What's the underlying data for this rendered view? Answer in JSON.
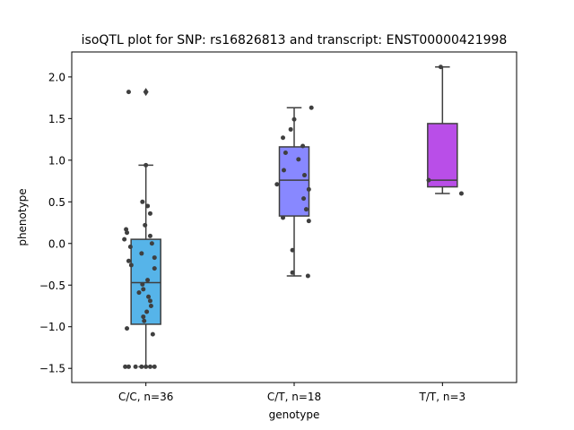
{
  "chart_data": {
    "type": "box",
    "title": "isoQTL plot for SNP: rs16826813 and transcript: ENST00000421998",
    "xlabel": "genotype",
    "ylabel": "phenotype",
    "ylim": [
      -1.67,
      2.3
    ],
    "yticks": [
      -1.5,
      -1.0,
      -0.5,
      0.0,
      0.5,
      1.0,
      1.5,
      2.0
    ],
    "ytick_labels": [
      "−1.5",
      "−1.0",
      "−0.5",
      "0.0",
      "0.5",
      "1.0",
      "1.5",
      "2.0"
    ],
    "grid": false,
    "categories": [
      "C/C, n=36",
      "C/T, n=18",
      "T/T, n=3"
    ],
    "colors": [
      "#56b4e9",
      "#8888ff",
      "#b94ee8"
    ],
    "boxes": [
      {
        "whisker_low": -1.48,
        "q1": -0.97,
        "median": -0.47,
        "q3": 0.05,
        "whisker_high": 0.94,
        "outliers": [
          1.82
        ]
      },
      {
        "whisker_low": -0.39,
        "q1": 0.33,
        "median": 0.76,
        "q3": 1.16,
        "whisker_high": 1.63,
        "outliers": []
      },
      {
        "whisker_low": 0.6,
        "q1": 0.68,
        "median": 0.76,
        "q3": 1.44,
        "whisker_high": 2.12,
        "outliers": []
      }
    ],
    "points": [
      [
        [
          -0.2,
          1.82
        ],
        [
          0.0,
          0.94
        ],
        [
          -0.04,
          0.5
        ],
        [
          0.02,
          0.45
        ],
        [
          0.05,
          0.36
        ],
        [
          -0.01,
          0.22
        ],
        [
          -0.23,
          0.17
        ],
        [
          -0.22,
          0.13
        ],
        [
          0.05,
          0.09
        ],
        [
          -0.25,
          0.05
        ],
        [
          0.07,
          0.0
        ],
        [
          -0.18,
          -0.04
        ],
        [
          -0.05,
          -0.12
        ],
        [
          0.1,
          -0.17
        ],
        [
          -0.2,
          -0.21
        ],
        [
          -0.17,
          -0.26
        ],
        [
          0.1,
          -0.3
        ],
        [
          0.02,
          -0.44
        ],
        [
          -0.04,
          -0.49
        ],
        [
          -0.03,
          -0.55
        ],
        [
          -0.08,
          -0.59
        ],
        [
          0.03,
          -0.64
        ],
        [
          0.05,
          -0.69
        ],
        [
          0.06,
          -0.75
        ],
        [
          0.01,
          -0.82
        ],
        [
          -0.03,
          -0.88
        ],
        [
          -0.02,
          -0.93
        ],
        [
          -0.22,
          -1.02
        ],
        [
          0.08,
          -1.09
        ],
        [
          -0.24,
          -1.48
        ],
        [
          -0.2,
          -1.48
        ],
        [
          -0.12,
          -1.48
        ],
        [
          -0.05,
          -1.48
        ],
        [
          0.0,
          -1.48
        ],
        [
          0.05,
          -1.48
        ],
        [
          0.1,
          -1.48
        ]
      ],
      [
        [
          0.2,
          1.63
        ],
        [
          0.0,
          1.49
        ],
        [
          -0.04,
          1.37
        ],
        [
          -0.13,
          1.27
        ],
        [
          0.1,
          1.17
        ],
        [
          -0.1,
          1.09
        ],
        [
          0.05,
          1.01
        ],
        [
          -0.12,
          0.88
        ],
        [
          0.12,
          0.82
        ],
        [
          -0.2,
          0.71
        ],
        [
          0.17,
          0.65
        ],
        [
          0.11,
          0.54
        ],
        [
          0.14,
          0.41
        ],
        [
          -0.13,
          0.31
        ],
        [
          0.17,
          0.27
        ],
        [
          -0.02,
          -0.08
        ],
        [
          -0.02,
          -0.35
        ],
        [
          0.16,
          -0.39
        ]
      ],
      [
        [
          -0.02,
          2.12
        ],
        [
          -0.16,
          0.76
        ],
        [
          0.22,
          0.6
        ]
      ]
    ]
  }
}
